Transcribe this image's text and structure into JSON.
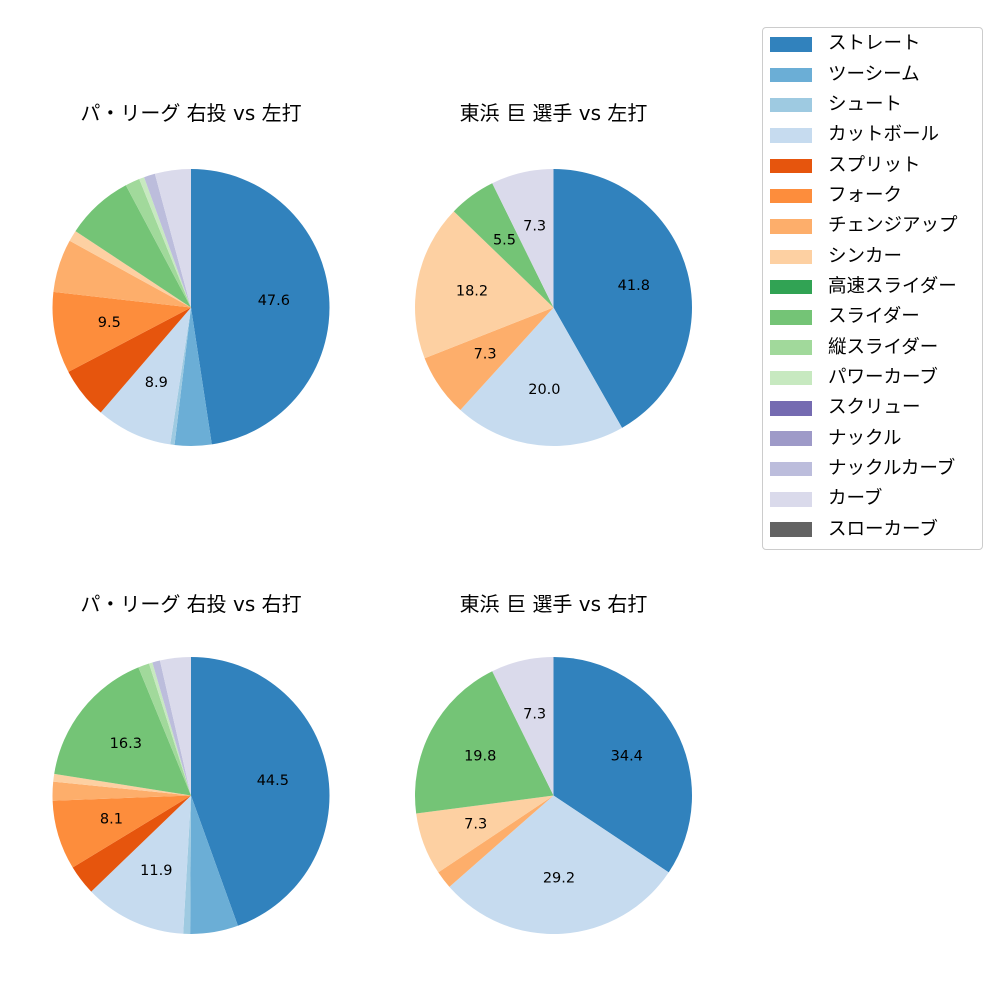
{
  "legend": {
    "items": [
      {
        "label": "ストレート",
        "color": "#3182bd"
      },
      {
        "label": "ツーシーム",
        "color": "#6baed6"
      },
      {
        "label": "シュート",
        "color": "#9ecae1"
      },
      {
        "label": "カットボール",
        "color": "#c6dbef"
      },
      {
        "label": "スプリット",
        "color": "#e6550d"
      },
      {
        "label": "フォーク",
        "color": "#fd8d3c"
      },
      {
        "label": "チェンジアップ",
        "color": "#fdae6b"
      },
      {
        "label": "シンカー",
        "color": "#fdd0a2"
      },
      {
        "label": "高速スライダー",
        "color": "#31a354"
      },
      {
        "label": "スライダー",
        "color": "#74c476"
      },
      {
        "label": "縦スライダー",
        "color": "#a1d99b"
      },
      {
        "label": "パワーカーブ",
        "color": "#c7e9c0"
      },
      {
        "label": "スクリュー",
        "color": "#756bb1"
      },
      {
        "label": "ナックル",
        "color": "#9e9ac8"
      },
      {
        "label": "ナックルカーブ",
        "color": "#bcbddc"
      },
      {
        "label": "カーブ",
        "color": "#dadaeb"
      },
      {
        "label": "スローカーブ",
        "color": "#636363"
      }
    ],
    "position": "upper right"
  },
  "chart_data": [
    {
      "type": "pie",
      "title": "パ・リーグ 右投 vs 左打",
      "categories": [
        "ストレート",
        "ツーシーム",
        "シュート",
        "カットボール",
        "スプリット",
        "フォーク",
        "チェンジアップ",
        "シンカー",
        "高速スライダー",
        "スライダー",
        "縦スライダー",
        "パワーカーブ",
        "スクリュー",
        "ナックル",
        "ナックルカーブ",
        "カーブ",
        "スローカーブ"
      ],
      "values": [
        47.6,
        4.3,
        0.5,
        8.9,
        6.0,
        9.5,
        6.2,
        1.3,
        0,
        7.9,
        1.7,
        0.6,
        0,
        0,
        1.3,
        4.2,
        0
      ],
      "pct_labels": [
        "47.6",
        null,
        null,
        "8.9",
        null,
        "9.5",
        null,
        null,
        null,
        null,
        null,
        null,
        null,
        null,
        null,
        null,
        null
      ],
      "start_angle": 90,
      "direction": "clockwise"
    },
    {
      "type": "pie",
      "title": "東浜 巨 選手 vs 左打",
      "categories": [
        "ストレート",
        "ツーシーム",
        "シュート",
        "カットボール",
        "スプリット",
        "フォーク",
        "チェンジアップ",
        "シンカー",
        "高速スライダー",
        "スライダー",
        "縦スライダー",
        "パワーカーブ",
        "スクリュー",
        "ナックル",
        "ナックルカーブ",
        "カーブ",
        "スローカーブ"
      ],
      "values": [
        41.8,
        0,
        0,
        20.0,
        0,
        0,
        7.3,
        18.2,
        0,
        5.5,
        0,
        0,
        0,
        0,
        0,
        7.3,
        0
      ],
      "pct_labels": [
        "41.8",
        null,
        null,
        "20.0",
        null,
        null,
        "7.3",
        "18.2",
        null,
        "5.5",
        null,
        null,
        null,
        null,
        null,
        "7.3",
        null
      ],
      "start_angle": 90,
      "direction": "clockwise"
    },
    {
      "type": "pie",
      "title": "パ・リーグ 右投 vs 右打",
      "categories": [
        "ストレート",
        "ツーシーム",
        "シュート",
        "カットボール",
        "スプリット",
        "フォーク",
        "チェンジアップ",
        "シンカー",
        "高速スライダー",
        "スライダー",
        "縦スライダー",
        "パワーカーブ",
        "スクリュー",
        "ナックル",
        "ナックルカーブ",
        "カーブ",
        "スローカーブ"
      ],
      "values": [
        44.5,
        5.6,
        0.8,
        11.9,
        3.5,
        8.1,
        2.2,
        0.9,
        0,
        16.3,
        1.3,
        0.4,
        0,
        0,
        0.9,
        3.6,
        0
      ],
      "pct_labels": [
        "44.5",
        null,
        null,
        "11.9",
        null,
        "8.1",
        null,
        null,
        null,
        "16.3",
        null,
        null,
        null,
        null,
        null,
        null,
        null
      ],
      "start_angle": 90,
      "direction": "clockwise"
    },
    {
      "type": "pie",
      "title": "東浜 巨 選手 vs 右打",
      "categories": [
        "ストレート",
        "ツーシーム",
        "シュート",
        "カットボール",
        "スプリット",
        "フォーク",
        "チェンジアップ",
        "シンカー",
        "高速スライダー",
        "スライダー",
        "縦スライダー",
        "パワーカーブ",
        "スクリュー",
        "ナックル",
        "ナックルカーブ",
        "カーブ",
        "スローカーブ"
      ],
      "values": [
        34.4,
        0,
        0,
        29.2,
        0,
        0,
        2.1,
        7.3,
        0,
        19.8,
        0,
        0,
        0,
        0,
        0,
        7.3,
        0
      ],
      "pct_labels": [
        "34.4",
        null,
        null,
        "29.2",
        null,
        null,
        null,
        "7.3",
        null,
        "19.8",
        null,
        null,
        null,
        null,
        null,
        "7.3",
        null
      ],
      "start_angle": 90,
      "direction": "clockwise"
    }
  ]
}
